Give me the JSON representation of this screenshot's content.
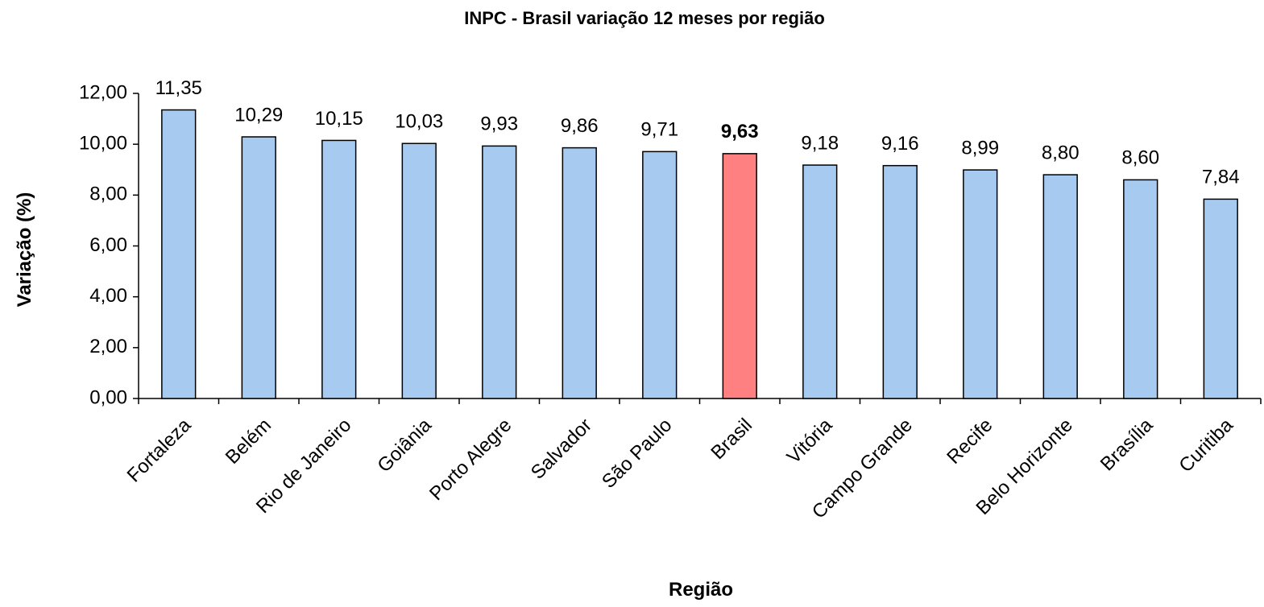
{
  "chart_data": {
    "type": "bar",
    "title": "INPC - Brasil variação 12 meses por região",
    "x_label": "Região",
    "y_label": "Variação (%)",
    "categories": [
      "Fortaleza",
      "Belém",
      "Rio de Janeiro",
      "Goiânia",
      "Porto Alegre",
      "Salvador",
      "São Paulo",
      "Brasil",
      "Vitória",
      "Campo Grande",
      "Recife",
      "Belo Horizonte",
      "Brasília",
      "Curitiba"
    ],
    "values": [
      11.35,
      10.29,
      10.15,
      10.03,
      9.93,
      9.86,
      9.71,
      9.63,
      9.18,
      9.16,
      8.99,
      8.8,
      8.6,
      7.84
    ],
    "value_labels": [
      "11,35",
      "10,29",
      "10,15",
      "10,03",
      "9,93",
      "9,86",
      "9,71",
      "9,63",
      "9,18",
      "9,16",
      "8,99",
      "8,80",
      "8,60",
      "7,84"
    ],
    "colors": [
      "#a6caf0",
      "#a6caf0",
      "#a6caf0",
      "#a6caf0",
      "#a6caf0",
      "#a6caf0",
      "#a6caf0",
      "#ff8080",
      "#a6caf0",
      "#a6caf0",
      "#a6caf0",
      "#a6caf0",
      "#a6caf0",
      "#a6caf0"
    ],
    "ylim": [
      0,
      12
    ],
    "yticks": [
      {
        "value": 0,
        "label": "0,00"
      },
      {
        "value": 2,
        "label": "2,00"
      },
      {
        "value": 4,
        "label": "4,00"
      },
      {
        "value": 6,
        "label": "6,00"
      },
      {
        "value": 8,
        "label": "8,00"
      },
      {
        "value": 10,
        "label": "10,00"
      },
      {
        "value": 12,
        "label": "12,00"
      }
    ],
    "grid": false
  }
}
